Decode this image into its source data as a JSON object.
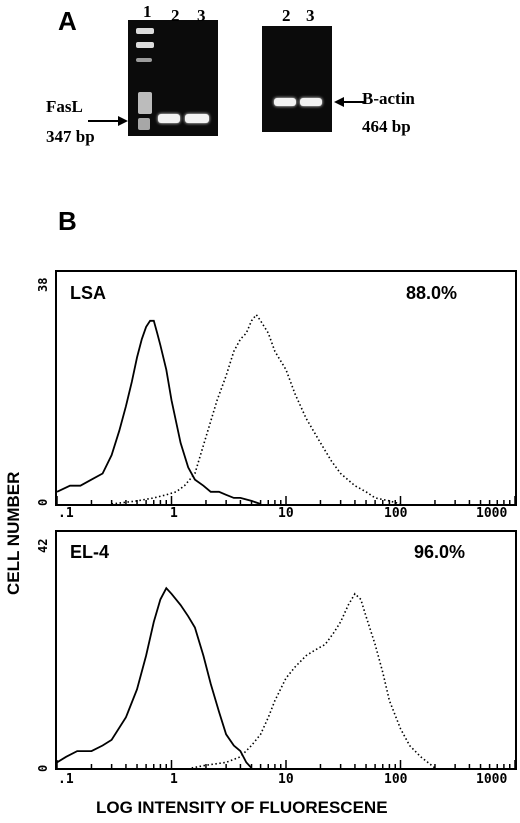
{
  "panel_a": {
    "letter": "A",
    "gel1_lanes": [
      "1",
      "2",
      "3"
    ],
    "gel2_lanes": [
      "2",
      "3"
    ],
    "left_label_line1": "FasL",
    "left_label_line2": "347 bp",
    "right_label_line1": "B-actin",
    "right_label_line2": "464 bp"
  },
  "panel_b": {
    "letter": "B",
    "y_axis_title": "CELL NUMBER",
    "x_axis_title": "LOG INTENSITY OF FLUORESCENE",
    "tick_labels": [
      ".1",
      "1",
      "10",
      "100",
      "1000"
    ]
  },
  "chart_data": [
    {
      "type": "line",
      "label": "LSA",
      "percent": "88.0%",
      "ymax_label": "38",
      "ymin_label": "0",
      "ylim": [
        0,
        38
      ],
      "x_scale": "log",
      "xlim": [
        0.1,
        1000
      ],
      "series": [
        {
          "style": "solid",
          "x": [
            0.1,
            0.13,
            0.16,
            0.2,
            0.25,
            0.3,
            0.35,
            0.4,
            0.45,
            0.5,
            0.55,
            0.6,
            0.65,
            0.7,
            0.75,
            0.8,
            0.9,
            1.0,
            1.2,
            1.4,
            1.6,
            1.9,
            2.2,
            2.6,
            3.0,
            3.5,
            4.0,
            5.0,
            6.0
          ],
          "y": [
            2,
            3,
            3,
            4,
            5,
            8,
            12,
            16,
            20,
            24,
            27,
            29,
            30,
            30,
            28,
            26,
            22,
            17,
            10,
            6,
            4,
            3,
            2,
            2,
            1.5,
            1,
            1,
            0.5,
            0
          ]
        },
        {
          "style": "dotted",
          "x": [
            0.3,
            0.5,
            0.7,
            0.9,
            1.1,
            1.3,
            1.6,
            2.0,
            2.5,
            3.0,
            3.5,
            4.0,
            4.5,
            5.0,
            5.5,
            6.0,
            7.0,
            8.0,
            10,
            12,
            15,
            20,
            25,
            30,
            40,
            50,
            60,
            80,
            100
          ],
          "y": [
            0,
            0.5,
            1,
            1.5,
            2,
            3,
            5,
            11,
            17,
            21,
            25,
            27,
            28,
            30,
            31,
            30,
            28,
            25,
            22,
            18,
            14,
            10,
            7,
            5,
            3,
            2,
            1,
            0.5,
            0
          ]
        }
      ]
    },
    {
      "type": "line",
      "label": "EL-4",
      "percent": "96.0%",
      "ymax_label": "42",
      "ymin_label": "0",
      "ylim": [
        0,
        42
      ],
      "x_scale": "log",
      "xlim": [
        0.1,
        1000
      ],
      "series": [
        {
          "style": "solid",
          "x": [
            0.1,
            0.12,
            0.15,
            0.2,
            0.25,
            0.3,
            0.4,
            0.5,
            0.6,
            0.7,
            0.8,
            0.9,
            1.0,
            1.2,
            1.4,
            1.6,
            1.9,
            2.2,
            2.6,
            3.0,
            3.5,
            4.0,
            4.5,
            5.0
          ],
          "y": [
            1,
            2,
            3,
            3,
            4,
            5,
            9,
            14,
            20,
            26,
            30,
            32,
            31,
            29,
            27,
            25,
            20,
            15,
            10,
            6,
            4,
            3,
            1,
            0
          ]
        },
        {
          "style": "dotted",
          "x": [
            1.5,
            2.0,
            3.0,
            4.0,
            5.0,
            6.0,
            7.0,
            8.0,
            10,
            12,
            15,
            18,
            22,
            26,
            30,
            35,
            40,
            45,
            50,
            60,
            70,
            80,
            100,
            120,
            150,
            200
          ],
          "y": [
            0,
            0.5,
            1,
            2,
            4,
            6,
            9,
            12,
            16,
            18,
            20,
            21,
            22,
            24,
            26,
            29,
            31,
            30,
            27,
            22,
            17,
            12,
            7,
            4,
            2,
            0
          ]
        }
      ]
    }
  ]
}
